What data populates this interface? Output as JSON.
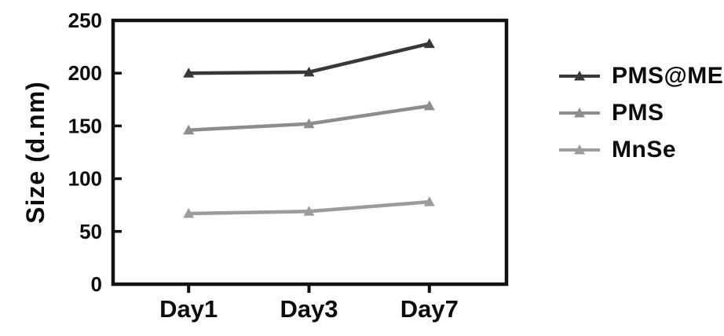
{
  "chart_data": {
    "type": "line",
    "title": "",
    "xlabel": "",
    "ylabel": "Size (d.nm)",
    "categories": [
      "Day1",
      "Day3",
      "Day7"
    ],
    "series": [
      {
        "name": "PMS@ME",
        "values": [
          200,
          201,
          228
        ],
        "color": "#383838",
        "marker": "triangle"
      },
      {
        "name": "PMS",
        "values": [
          146,
          152,
          169
        ],
        "color": "#8d8d8d",
        "marker": "triangle"
      },
      {
        "name": "MnSe",
        "values": [
          67,
          69,
          78
        ],
        "color": "#9c9c9c",
        "marker": "triangle"
      }
    ],
    "ylim": [
      0,
      250
    ],
    "yticks": [
      0,
      50,
      100,
      150,
      200,
      250
    ],
    "grid": false,
    "legend_position": "right",
    "axis_color": "#111111",
    "background": "#ffffff"
  }
}
